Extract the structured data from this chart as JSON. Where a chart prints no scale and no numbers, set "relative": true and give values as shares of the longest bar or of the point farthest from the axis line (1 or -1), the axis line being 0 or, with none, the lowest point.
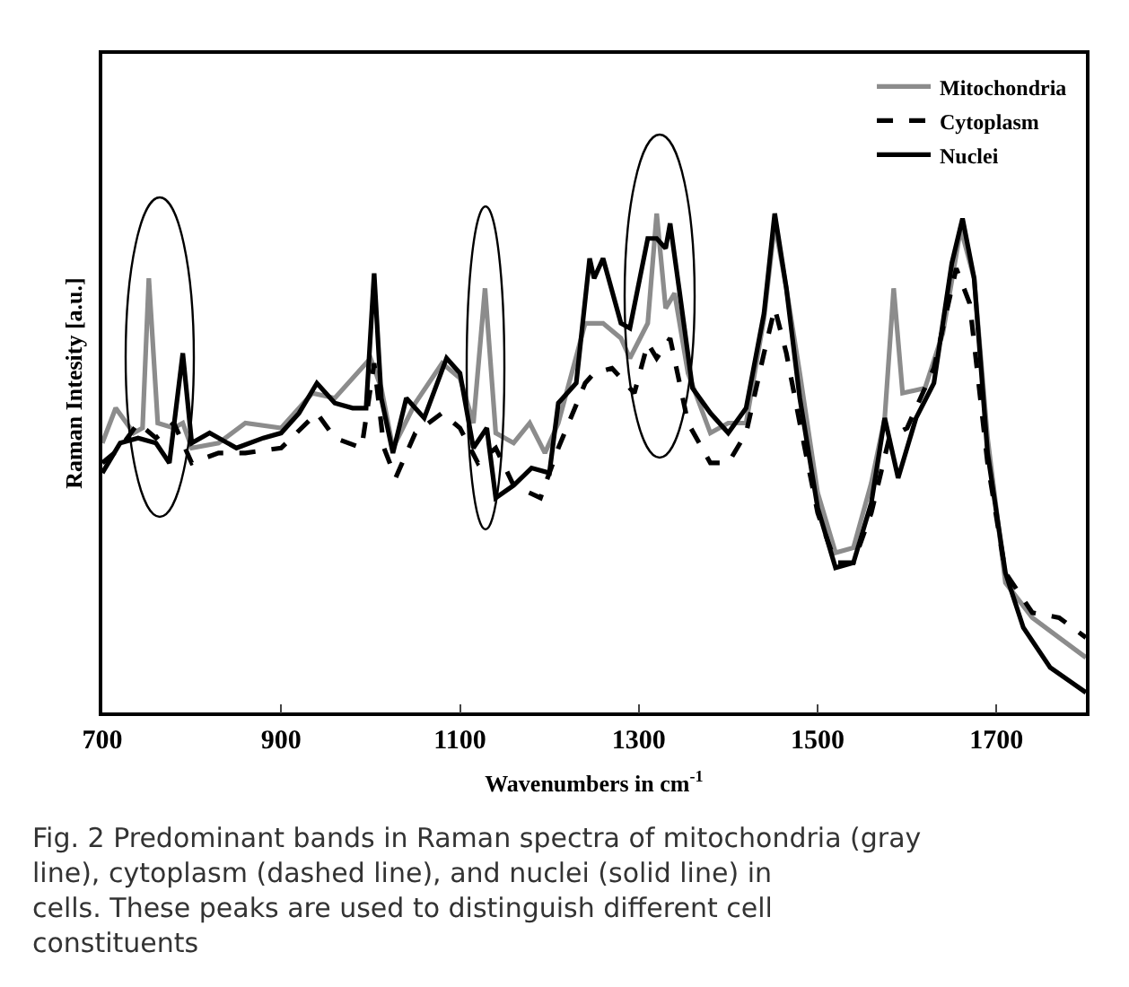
{
  "chart_data": {
    "type": "line",
    "relative": true,
    "xlabel": "Wavenumbers in cm$^{-1}$",
    "ylabel": "Raman Intesity [a.u.]",
    "xlim": [
      700,
      1800
    ],
    "xticks": [
      700,
      900,
      1100,
      1300,
      1500,
      1700
    ],
    "grid": false,
    "legend": "top right",
    "marker": "none",
    "annotations": [
      "Fig. 2 Predominant bands in Raman spectra of mitochondria (gray line), cytoplasm (dashed line), and nuclei (solid line) in cells. These peaks are used to distinguish different cell constituents"
    ],
    "series": [
      {
        "name": "Mitochondria",
        "color": "#8c8c8c",
        "line_style": "solid",
        "x": [
          700,
          715,
          735,
          745,
          752,
          762,
          780,
          790,
          800,
          830,
          860,
          900,
          935,
          960,
          1000,
          1012,
          1025,
          1050,
          1080,
          1100,
          1115,
          1128,
          1140,
          1160,
          1178,
          1195,
          1210,
          1240,
          1260,
          1280,
          1290,
          1310,
          1320,
          1330,
          1340,
          1355,
          1380,
          1400,
          1420,
          1440,
          1452,
          1465,
          1480,
          1500,
          1520,
          1540,
          1560,
          1575,
          1585,
          1595,
          1620,
          1640,
          1660,
          1675,
          1690,
          1710,
          1740,
          1770,
          1800
        ],
        "values": [
          0.54,
          0.61,
          0.56,
          0.57,
          0.87,
          0.58,
          0.57,
          0.58,
          0.53,
          0.54,
          0.58,
          0.57,
          0.64,
          0.63,
          0.71,
          0.65,
          0.53,
          0.62,
          0.7,
          0.67,
          0.58,
          0.85,
          0.56,
          0.54,
          0.58,
          0.52,
          0.58,
          0.78,
          0.78,
          0.75,
          0.71,
          0.78,
          1.0,
          0.81,
          0.84,
          0.68,
          0.56,
          0.58,
          0.58,
          0.79,
          0.98,
          0.85,
          0.68,
          0.44,
          0.32,
          0.33,
          0.46,
          0.59,
          0.85,
          0.64,
          0.65,
          0.76,
          0.97,
          0.87,
          0.55,
          0.26,
          0.19,
          0.15,
          0.11
        ]
      },
      {
        "name": "Cytoplasm",
        "color": "#000000",
        "line_style": "dashed",
        "x": [
          700,
          720,
          740,
          760,
          780,
          800,
          830,
          860,
          900,
          940,
          960,
          990,
          1004,
          1015,
          1028,
          1050,
          1080,
          1100,
          1120,
          1140,
          1160,
          1190,
          1210,
          1240,
          1250,
          1270,
          1295,
          1310,
          1320,
          1335,
          1355,
          1380,
          1400,
          1420,
          1440,
          1452,
          1465,
          1480,
          1500,
          1520,
          1540,
          1560,
          1580,
          1600,
          1630,
          1655,
          1670,
          1690,
          1710,
          1740,
          1770,
          1800
        ],
        "values": [
          0.5,
          0.53,
          0.58,
          0.55,
          0.58,
          0.5,
          0.52,
          0.52,
          0.53,
          0.6,
          0.55,
          0.53,
          0.7,
          0.53,
          0.47,
          0.56,
          0.6,
          0.57,
          0.5,
          0.53,
          0.455,
          0.43,
          0.53,
          0.66,
          0.68,
          0.69,
          0.64,
          0.74,
          0.71,
          0.75,
          0.58,
          0.5,
          0.5,
          0.56,
          0.72,
          0.81,
          0.72,
          0.58,
          0.4,
          0.3,
          0.3,
          0.4,
          0.55,
          0.57,
          0.69,
          0.89,
          0.82,
          0.5,
          0.28,
          0.2,
          0.19,
          0.15
        ]
      },
      {
        "name": "Nuclei",
        "color": "#000000",
        "line_style": "solid",
        "x": [
          700,
          720,
          740,
          760,
          775,
          790,
          800,
          820,
          850,
          880,
          900,
          920,
          940,
          960,
          980,
          995,
          1004,
          1012,
          1025,
          1040,
          1060,
          1085,
          1100,
          1115,
          1130,
          1140,
          1160,
          1180,
          1200,
          1210,
          1230,
          1245,
          1250,
          1260,
          1280,
          1290,
          1310,
          1320,
          1330,
          1335,
          1345,
          1360,
          1380,
          1400,
          1420,
          1440,
          1452,
          1465,
          1480,
          1500,
          1520,
          1540,
          1560,
          1575,
          1590,
          1610,
          1630,
          1650,
          1662,
          1675,
          1690,
          1710,
          1730,
          1760,
          1800
        ],
        "values": [
          0.48,
          0.54,
          0.55,
          0.54,
          0.5,
          0.72,
          0.54,
          0.56,
          0.53,
          0.55,
          0.56,
          0.6,
          0.66,
          0.62,
          0.61,
          0.61,
          0.88,
          0.63,
          0.52,
          0.63,
          0.59,
          0.71,
          0.68,
          0.53,
          0.57,
          0.43,
          0.455,
          0.49,
          0.48,
          0.62,
          0.66,
          0.91,
          0.87,
          0.91,
          0.78,
          0.77,
          0.95,
          0.95,
          0.93,
          0.98,
          0.85,
          0.65,
          0.6,
          0.56,
          0.61,
          0.8,
          1.0,
          0.85,
          0.63,
          0.41,
          0.29,
          0.3,
          0.42,
          0.59,
          0.47,
          0.59,
          0.66,
          0.9,
          0.99,
          0.87,
          0.52,
          0.28,
          0.17,
          0.09,
          0.04
        ]
      }
    ]
  }
}
